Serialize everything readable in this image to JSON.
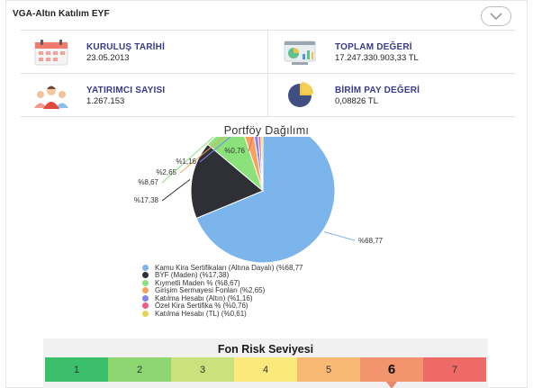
{
  "header": {
    "title": "VGA-Altın Katılım EYF"
  },
  "info": [
    {
      "label": "KURULUŞ TARİHİ",
      "value": "23.05.2013",
      "icon": "calendar-icon"
    },
    {
      "label": "TOPLAM DEĞERİ",
      "value": "17.247.330.903,33 TL",
      "icon": "dashboard-chart-icon"
    },
    {
      "label": "YATIRIMCI SAYISI",
      "value": "1.267.153",
      "icon": "people-icon"
    },
    {
      "label": "BİRİM PAY DEĞERİ",
      "value": "0,08826 TL",
      "icon": "pie-chart-icon"
    }
  ],
  "chart_title": "Portföy Dağılımı",
  "chart_data": {
    "type": "pie",
    "title": "Portföy Dağılımı",
    "slices": [
      {
        "label": "Kamu Kira Sertifikaları (Altına Dayalı) (%68,77",
        "value": 68.77,
        "pct_label": "%68,77",
        "color": "#7cb5ec"
      },
      {
        "label": "BYF (Maden) (%17,38)",
        "value": 17.38,
        "pct_label": "%17,38",
        "color": "#2f3035"
      },
      {
        "label": "Kıymetli Maden % (%8,67)",
        "value": 8.67,
        "pct_label": "%8,67",
        "color": "#8be27a"
      },
      {
        "label": "Girişim Sermayesi Fonları (%2,65)",
        "value": 2.65,
        "pct_label": "%2,65",
        "color": "#f7a35c"
      },
      {
        "label": "Katılma Hesabı (Altın) (%1,16)",
        "value": 1.16,
        "pct_label": "%1,16",
        "color": "#8085e9"
      },
      {
        "label": "Özel Kira Sertifika % (%0,76)",
        "value": 0.76,
        "pct_label": "%0,76",
        "color": "#f15c80"
      },
      {
        "label": "Katılma Hesabı (TL) (%0,61)",
        "value": 0.61,
        "pct_label": "",
        "color": "#e4d354"
      }
    ]
  },
  "risk": {
    "title": "Fon Risk Seviyesi",
    "levels": [
      "1",
      "2",
      "3",
      "4",
      "5",
      "6",
      "7"
    ],
    "colors": [
      "#3bbf6b",
      "#8dd672",
      "#c9e27b",
      "#fbe97b",
      "#f8b975",
      "#f3946f",
      "#ee6a67"
    ],
    "active": 6
  }
}
